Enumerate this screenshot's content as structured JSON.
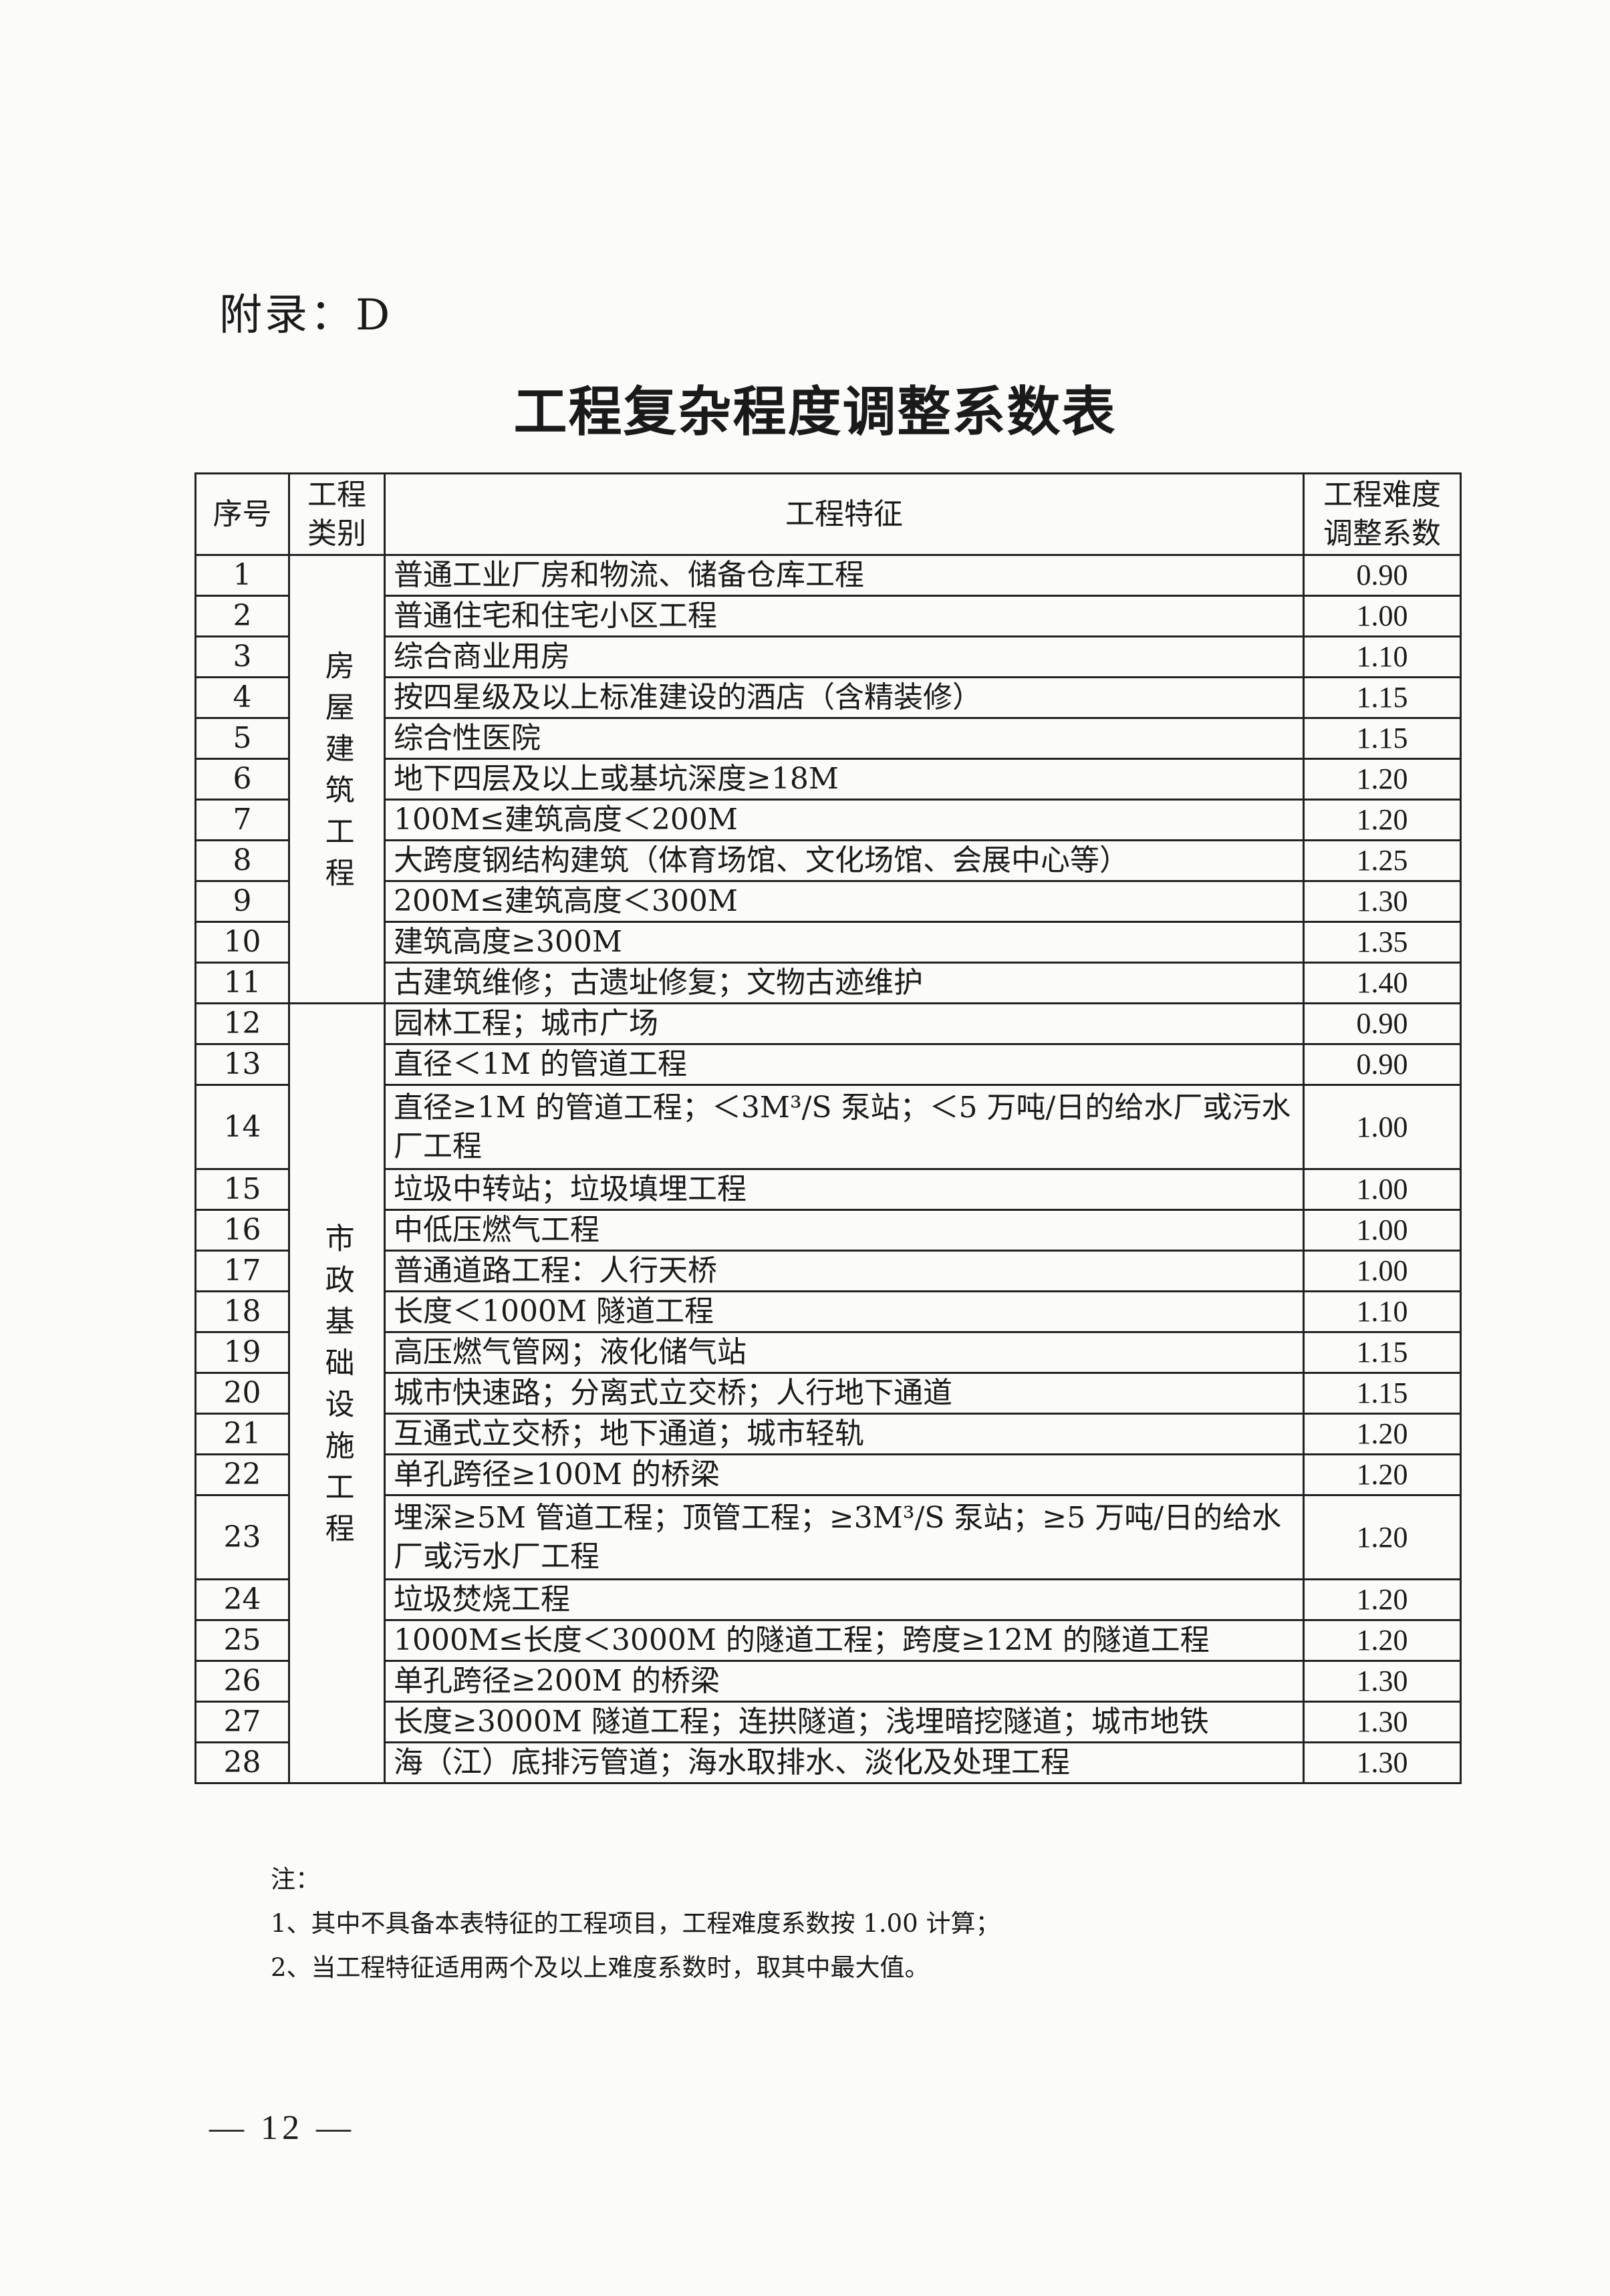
{
  "appendix_label": "附录：D",
  "title": "工程复杂程度调整系数表",
  "table": {
    "headers": {
      "no": "序号",
      "category_line1": "工程",
      "category_line2": "类别",
      "feature": "工程特征",
      "coef_line1": "工程难度",
      "coef_line2": "调整系数"
    },
    "categories": [
      {
        "label": "房屋建筑工程",
        "rows": 11
      },
      {
        "label": "市政基础设施工程",
        "rows": 17
      }
    ],
    "rows": [
      {
        "no": "1",
        "feature": "普通工业厂房和物流、储备仓库工程",
        "coef": "0.90"
      },
      {
        "no": "2",
        "feature": "普通住宅和住宅小区工程",
        "coef": "1.00"
      },
      {
        "no": "3",
        "feature": "综合商业用房",
        "coef": "1.10"
      },
      {
        "no": "4",
        "feature": "按四星级及以上标准建设的酒店（含精装修）",
        "coef": "1.15"
      },
      {
        "no": "5",
        "feature": "综合性医院",
        "coef": "1.15"
      },
      {
        "no": "6",
        "feature": "地下四层及以上或基坑深度≥18M",
        "coef": "1.20"
      },
      {
        "no": "7",
        "feature": "100M≤建筑高度＜200M",
        "coef": "1.20"
      },
      {
        "no": "8",
        "feature": "大跨度钢结构建筑（体育场馆、文化场馆、会展中心等）",
        "coef": "1.25"
      },
      {
        "no": "9",
        "feature": "200M≤建筑高度＜300M",
        "coef": "1.30"
      },
      {
        "no": "10",
        "feature": "建筑高度≥300M",
        "coef": "1.35"
      },
      {
        "no": "11",
        "feature": "古建筑维修；古遗址修复；文物古迹维护",
        "coef": "1.40"
      },
      {
        "no": "12",
        "feature": "园林工程；城市广场",
        "coef": "0.90"
      },
      {
        "no": "13",
        "feature": "直径＜1M 的管道工程",
        "coef": "0.90"
      },
      {
        "no": "14",
        "feature": "直径≥1M 的管道工程；＜3M³/S 泵站；＜5 万吨/日的给水厂或污水厂工程",
        "coef": "1.00",
        "tall": true
      },
      {
        "no": "15",
        "feature": "垃圾中转站；垃圾填埋工程",
        "coef": "1.00"
      },
      {
        "no": "16",
        "feature": "中低压燃气工程",
        "coef": "1.00"
      },
      {
        "no": "17",
        "feature": "普通道路工程：人行天桥",
        "coef": "1.00"
      },
      {
        "no": "18",
        "feature": "长度＜1000M 隧道工程",
        "coef": "1.10"
      },
      {
        "no": "19",
        "feature": "高压燃气管网；液化储气站",
        "coef": "1.15"
      },
      {
        "no": "20",
        "feature": "城市快速路；分离式立交桥；人行地下通道",
        "coef": "1.15"
      },
      {
        "no": "21",
        "feature": "互通式立交桥；地下通道；城市轻轨",
        "coef": "1.20"
      },
      {
        "no": "22",
        "feature": "单孔跨径≥100M 的桥梁",
        "coef": "1.20"
      },
      {
        "no": "23",
        "feature": "埋深≥5M 管道工程；顶管工程；≥3M³/S 泵站；≥5 万吨/日的给水厂或污水厂工程",
        "coef": "1.20",
        "tall": true
      },
      {
        "no": "24",
        "feature": "垃圾焚烧工程",
        "coef": "1.20"
      },
      {
        "no": "25",
        "feature": "1000M≤长度＜3000M 的隧道工程；跨度≥12M 的隧道工程",
        "coef": "1.20"
      },
      {
        "no": "26",
        "feature": "单孔跨径≥200M 的桥梁",
        "coef": "1.30"
      },
      {
        "no": "27",
        "feature": "长度≥3000M 隧道工程；连拱隧道；浅埋暗挖隧道；城市地铁",
        "coef": "1.30"
      },
      {
        "no": "28",
        "feature": "海（江）底排污管道；海水取排水、淡化及处理工程",
        "coef": "1.30"
      }
    ]
  },
  "notes": {
    "heading": "注：",
    "items": [
      "1、其中不具备本表特征的工程项目，工程难度系数按 1.00 计算；",
      "2、当工程特征适用两个及以上难度系数时，取其中最大值。"
    ]
  },
  "page_number": "— 12 —"
}
